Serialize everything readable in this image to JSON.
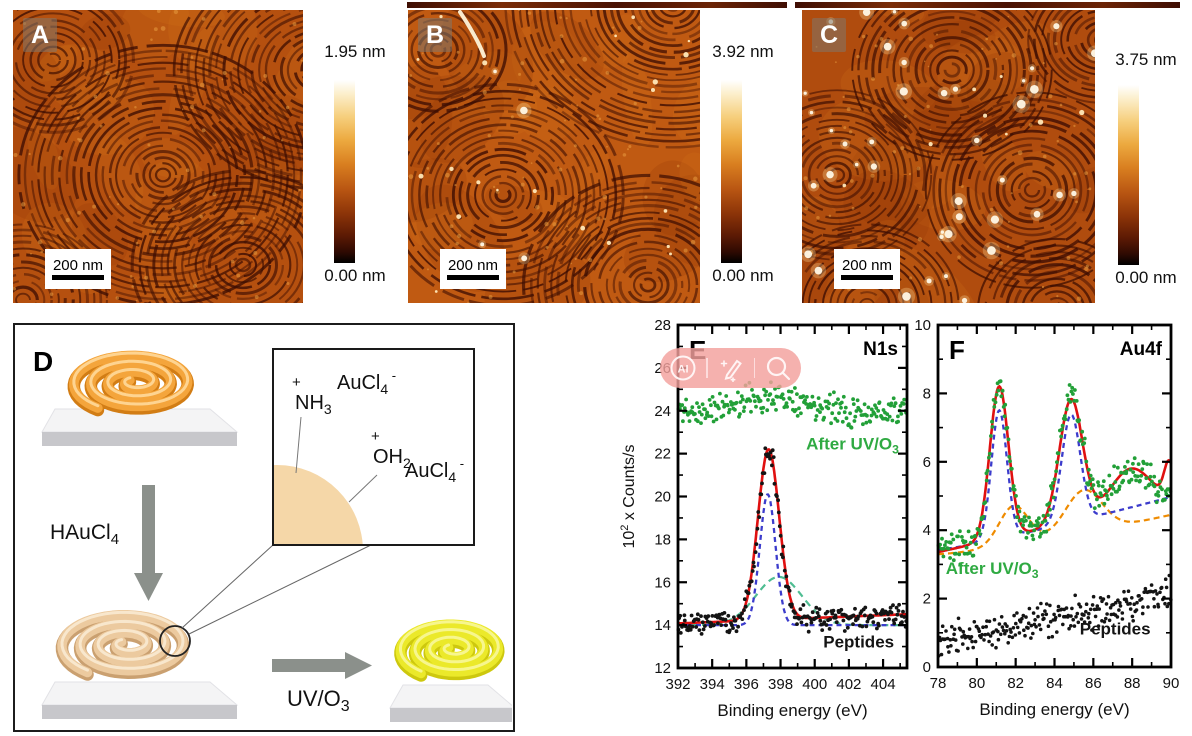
{
  "afm_panels": [
    {
      "label": "A",
      "scale_bar_label": "200 nm",
      "colorbar_top": "1.95 nm",
      "colorbar_bottom": "0.00 nm"
    },
    {
      "label": "B",
      "scale_bar_label": "200 nm",
      "colorbar_top": "3.92 nm",
      "colorbar_bottom": "0.00 nm"
    },
    {
      "label": "C",
      "scale_bar_label": "200 nm",
      "colorbar_top": "3.75 nm",
      "colorbar_bottom": "0.00 nm"
    }
  ],
  "schematic": {
    "label": "D",
    "step1_reagent": {
      "text": "HAuCl",
      "sub": "4"
    },
    "step2_reagent": {
      "text": "UV/O",
      "sub": "3"
    },
    "inset": {
      "nh3": {
        "sup": "+",
        "text": "NH",
        "sub": "3"
      },
      "aucl4_a": {
        "text": "AuCl",
        "sub": "4",
        "sup_after": "-"
      },
      "oh2": {
        "sup": "+",
        "text": "OH",
        "sub": "2"
      },
      "aucl4_b": {
        "text": "AuCl",
        "sub": "4",
        "sup_after": "-"
      }
    },
    "colors": {
      "spiral_top": "#f4a53c",
      "spiral_middle": "#ecca9f",
      "spiral_bottom": "#ebe92a",
      "arrow": "#8b908b",
      "slab_top": "#f4f4f5",
      "slab_front": "#c7c7cb",
      "inset_disc": "#f5d7a8"
    }
  },
  "overlay_toolbar": {
    "ai_text": "AI",
    "color": "#f3a09c",
    "icons": [
      "ai-badge-icon",
      "magic-pen-icon",
      "magnifier-icon"
    ]
  },
  "chart_data": [
    {
      "id": "E",
      "type": "scatter",
      "panel_label": "E",
      "corner_label": "N1s",
      "xlabel": "Binding energy (eV)",
      "ylabel_parts": {
        "pre": "10",
        "sup": "2",
        "post": " x Counts/s"
      },
      "xlim": [
        392,
        405.4
      ],
      "ylim": [
        12,
        28
      ],
      "xticks": [
        392,
        394,
        396,
        398,
        400,
        402,
        404
      ],
      "yticks": [
        12,
        14,
        16,
        18,
        20,
        22,
        24,
        26,
        28
      ],
      "x_minor_step": 1,
      "y_minor_step": 1,
      "grid": false,
      "legend": "inline annotations",
      "series": [
        {
          "name": "N1s broad component (fit)",
          "kind": "line",
          "color": "#4fbd92",
          "dash": "7,5",
          "width": 2.2,
          "baseline": 14.0,
          "peaks": [
            {
              "c": 397.9,
              "h": 2.25,
              "s": 1.35
            }
          ]
        },
        {
          "name": "N1s main component (fit)",
          "kind": "line",
          "color": "#3c3ccc",
          "dash": "5,4",
          "width": 2.3,
          "baseline": 14.0,
          "peaks": [
            {
              "c": 397.25,
              "h": 6.1,
              "s": 0.46
            }
          ]
        },
        {
          "name": "Peptides envelope fit",
          "kind": "line",
          "color": "#e01010",
          "width": 2.6,
          "baseline": 14.08,
          "slope": 0.032,
          "peaks": [
            {
              "c": 397.3,
              "h": 7.95,
              "s": 0.62
            }
          ]
        },
        {
          "name": "After UV/O3 (data)",
          "kind": "scatter",
          "color": "#22a038",
          "r": 1.9,
          "step": 0.057,
          "noise": 0.42,
          "seed": 11,
          "baseline": 23.95,
          "peaks": [
            {
              "c": 397.6,
              "h": 0.75,
              "s": 2.0
            }
          ]
        },
        {
          "name": "Peptides (data)",
          "kind": "scatter",
          "color": "#141414",
          "r": 1.9,
          "step": 0.057,
          "noise": 0.34,
          "seed": 22,
          "baseline": 14.15,
          "slope": 0.022,
          "peaks": [
            {
              "c": 397.3,
              "h": 7.9,
              "s": 0.6
            }
          ]
        }
      ],
      "annotations": [
        {
          "text": "After UV/O",
          "sub": "3",
          "x": 399.5,
          "y": 22.2,
          "color": "#2faa42",
          "size": 17,
          "bold": true
        },
        {
          "text": "Peptides",
          "x": 400.5,
          "y": 12.95,
          "color": "#141414",
          "size": 17,
          "bold": true
        }
      ]
    },
    {
      "id": "F",
      "type": "scatter",
      "panel_label": "F",
      "corner_label": "Au4f",
      "xlabel": "Binding energy (eV)",
      "ylabel_parts": null,
      "xlim": [
        78,
        90
      ],
      "ylim": [
        0,
        10
      ],
      "xticks": [
        78,
        80,
        82,
        84,
        86,
        88,
        90
      ],
      "yticks": [
        0,
        2,
        4,
        6,
        8,
        10
      ],
      "x_minor_step": 1,
      "y_minor_step": 1,
      "grid": false,
      "legend": "inline annotations",
      "series": [
        {
          "name": "Au4f background component",
          "kind": "line",
          "color": "#ef8b00",
          "dash": "6,4",
          "width": 2.2,
          "baseline": 3.3,
          "ramp": {
            "amp": 1.15,
            "pow": 1.3
          },
          "peaks": [
            {
              "c": 81.9,
              "h": 1.15,
              "s": 0.75
            },
            {
              "c": 85.5,
              "h": 1.25,
              "s": 0.95
            }
          ]
        },
        {
          "name": "Au4f doublet components",
          "kind": "line",
          "color": "#3c3ccc",
          "dash": "5,4",
          "width": 2.3,
          "baseline": 3.42,
          "ramp": {
            "amp": 1.55,
            "pow": 1.15
          },
          "peaks": [
            {
              "c": 81.15,
              "h": 3.75,
              "s": 0.4
            },
            {
              "c": 84.85,
              "h": 3.15,
              "s": 0.48
            }
          ]
        },
        {
          "name": "Au4f envelope fit",
          "kind": "line",
          "color": "#e01010",
          "width": 2.6,
          "baseline": 3.36,
          "ramp": {
            "amp": 1.5,
            "pow": 1.0
          },
          "peaks": [
            {
              "c": 81.15,
              "h": 4.45,
              "s": 0.48
            },
            {
              "c": 84.85,
              "h": 3.6,
              "s": 0.6
            },
            {
              "c": 87.9,
              "h": 1.2,
              "s": 1.05
            },
            {
              "c": 89.9,
              "h": 1.0,
              "s": 0.25
            }
          ]
        },
        {
          "name": "After UV/O3 (data)",
          "kind": "scatter",
          "color": "#22a038",
          "r": 1.9,
          "step": 0.05,
          "noise": 0.27,
          "seed": 33,
          "baseline": 3.36,
          "ramp": {
            "amp": 1.5,
            "pow": 1.0
          },
          "peaks": [
            {
              "c": 81.15,
              "h": 4.45,
              "s": 0.48
            },
            {
              "c": 84.85,
              "h": 3.6,
              "s": 0.6
            },
            {
              "c": 87.9,
              "h": 1.2,
              "s": 1.05
            }
          ]
        },
        {
          "name": "Peptides (data)",
          "kind": "scatter",
          "color": "#141414",
          "r": 1.8,
          "step": 0.05,
          "noise": 0.3,
          "seed": 44,
          "baseline": 0.78,
          "ramp": {
            "amp": 1.4,
            "pow": 1.2
          },
          "peaks": []
        }
      ],
      "annotations": [
        {
          "text": "After UV/O",
          "sub": "3",
          "x": 78.4,
          "y": 2.72,
          "color": "#2faa42",
          "size": 17,
          "bold": true
        },
        {
          "text": "Peptides",
          "x": 85.3,
          "y": 0.95,
          "color": "#141414",
          "size": 17,
          "bold": true
        }
      ]
    }
  ]
}
